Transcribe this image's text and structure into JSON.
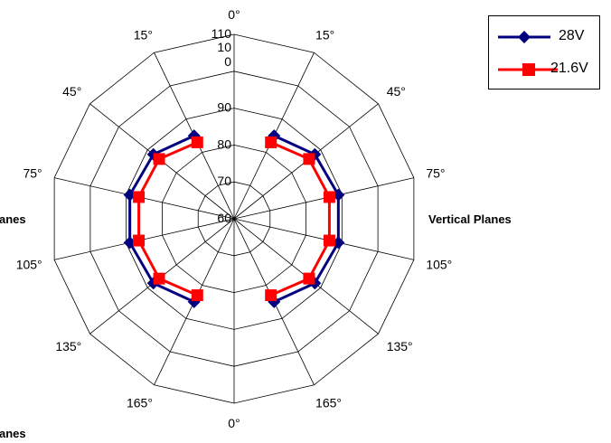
{
  "chart_data": {
    "type": "radar",
    "angle_labels": [
      "0°",
      "15°",
      "45°",
      "75°",
      "105°",
      "135°",
      "165°",
      "0°",
      "165°",
      "135°",
      "105°",
      "75°",
      "45°",
      "15°"
    ],
    "radial_ticks": [
      "60",
      "70",
      "80",
      "90",
      "10\n0",
      "110"
    ],
    "rmin": 60,
    "rmax": 110,
    "series": [
      {
        "name": "28V",
        "color": "#000080",
        "marker": "diamond",
        "values": [
          null,
          85,
          88,
          89,
          89,
          88,
          85,
          null,
          85,
          88,
          89,
          89,
          88,
          85
        ]
      },
      {
        "name": "21.6V",
        "color": "#ff0000",
        "marker": "square",
        "values": [
          null,
          83,
          86,
          86.5,
          86.5,
          86,
          83,
          null,
          83,
          86,
          86.5,
          86.5,
          86,
          83
        ]
      }
    ],
    "plane_labels": [
      "Vertical Planes",
      "anes",
      "anes"
    ],
    "legend_position": "top-right"
  }
}
